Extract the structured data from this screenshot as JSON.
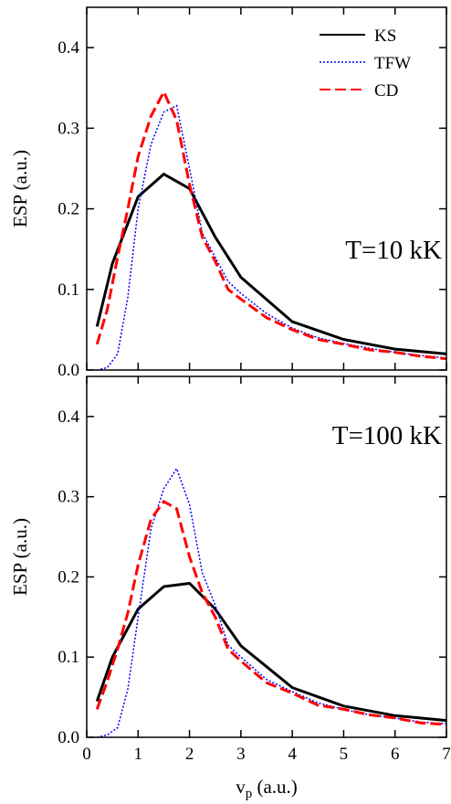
{
  "chart_data": [
    {
      "type": "line",
      "annotation": "T=10 kK",
      "ylabel": "ESP (a.u.)",
      "legend": "upper right",
      "xlim": [
        0,
        7
      ],
      "xticks": [
        0,
        1,
        2,
        3,
        4,
        5,
        6,
        7
      ],
      "ylim": [
        0,
        0.45
      ],
      "yticks": [
        {
          "value": 0,
          "label": "0.0"
        },
        {
          "value": 0.1,
          "label": "0.1"
        },
        {
          "value": 0.2,
          "label": "0.2"
        },
        {
          "value": 0.3,
          "label": "0.3"
        },
        {
          "value": 0.4,
          "label": "0.4"
        }
      ],
      "series": [
        {
          "name": "KS",
          "color": "#000000",
          "style": "solid",
          "x": [
            0.2,
            0.5,
            1,
            1.5,
            2,
            2.5,
            3,
            4,
            5,
            6,
            7
          ],
          "values": [
            0.054,
            0.132,
            0.215,
            0.243,
            0.225,
            0.165,
            0.115,
            0.06,
            0.038,
            0.026,
            0.02
          ]
        },
        {
          "name": "TFW",
          "color": "#0000ff",
          "style": "dotted",
          "x": [
            0.2,
            0.4,
            0.6,
            0.8,
            1,
            1.25,
            1.5,
            1.75,
            2,
            2.25,
            2.5,
            2.75,
            3,
            3.5,
            4,
            4.5,
            5,
            5.5,
            6,
            6.5,
            7
          ],
          "values": [
            0.0,
            0.003,
            0.02,
            0.09,
            0.2,
            0.28,
            0.32,
            0.328,
            0.25,
            0.17,
            0.14,
            0.11,
            0.095,
            0.07,
            0.052,
            0.04,
            0.033,
            0.027,
            0.022,
            0.018,
            0.015
          ]
        },
        {
          "name": "CD",
          "color": "#ff0000",
          "style": "dashed",
          "x": [
            0.2,
            0.4,
            0.6,
            0.8,
            1,
            1.25,
            1.5,
            1.75,
            2,
            2.25,
            2.5,
            2.75,
            3,
            3.5,
            4,
            4.5,
            5,
            5.5,
            6,
            6.5,
            7
          ],
          "values": [
            0.032,
            0.075,
            0.14,
            0.2,
            0.265,
            0.315,
            0.345,
            0.31,
            0.23,
            0.165,
            0.135,
            0.1,
            0.088,
            0.065,
            0.05,
            0.038,
            0.032,
            0.025,
            0.022,
            0.017,
            0.014
          ]
        }
      ]
    },
    {
      "type": "line",
      "annotation": "T=100 kK",
      "ylabel": "ESP (a.u.)",
      "xlabel": {
        "base": "v",
        "sub": "p",
        "rest": " (a.u.)"
      },
      "xlim": [
        0,
        7
      ],
      "xticks": [
        0,
        1,
        2,
        3,
        4,
        5,
        6,
        7
      ],
      "ylim": [
        0,
        0.45
      ],
      "yticks": [
        {
          "value": 0,
          "label": "0.0"
        },
        {
          "value": 0.1,
          "label": "0.1"
        },
        {
          "value": 0.2,
          "label": "0.2"
        },
        {
          "value": 0.3,
          "label": "0.3"
        },
        {
          "value": 0.4,
          "label": "0.4"
        }
      ],
      "series": [
        {
          "color": "#000000",
          "style": "solid",
          "x": [
            0.2,
            0.5,
            1,
            1.5,
            2,
            2.5,
            3,
            4,
            5,
            6,
            7
          ],
          "values": [
            0.045,
            0.1,
            0.16,
            0.188,
            0.192,
            0.16,
            0.114,
            0.062,
            0.039,
            0.027,
            0.021
          ]
        },
        {
          "color": "#0000ff",
          "style": "dotted",
          "x": [
            0.2,
            0.4,
            0.6,
            0.8,
            1,
            1.25,
            1.5,
            1.75,
            2,
            2.25,
            2.5,
            2.75,
            3,
            3.5,
            4,
            4.5,
            5,
            5.5,
            6,
            6.5,
            7
          ],
          "values": [
            0.0,
            0.003,
            0.012,
            0.06,
            0.15,
            0.26,
            0.31,
            0.335,
            0.29,
            0.205,
            0.165,
            0.115,
            0.1,
            0.072,
            0.057,
            0.043,
            0.035,
            0.028,
            0.024,
            0.019,
            0.017
          ]
        },
        {
          "color": "#ff0000",
          "style": "dashed",
          "x": [
            0.2,
            0.4,
            0.6,
            0.8,
            1,
            1.25,
            1.5,
            1.75,
            2,
            2.25,
            2.5,
            2.75,
            3,
            3.5,
            4,
            4.5,
            5,
            5.5,
            6,
            6.5,
            7
          ],
          "values": [
            0.035,
            0.07,
            0.11,
            0.155,
            0.215,
            0.272,
            0.294,
            0.285,
            0.225,
            0.18,
            0.15,
            0.11,
            0.095,
            0.068,
            0.055,
            0.04,
            0.035,
            0.028,
            0.024,
            0.018,
            0.016
          ]
        }
      ]
    }
  ]
}
